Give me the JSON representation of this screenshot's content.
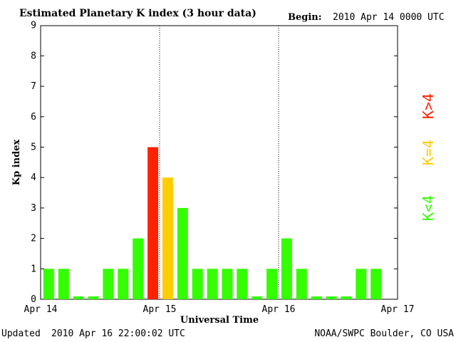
{
  "header": {
    "title": "Estimated Planetary K index (3 hour data)",
    "begin_label": "Begin:",
    "begin_value": "2010 Apr 14 0000 UTC"
  },
  "footer": {
    "updated_label": "Updated",
    "updated_value": "2010 Apr 16 22:00:02 UTC",
    "source": "NOAA/SWPC Boulder, CO USA"
  },
  "legend": {
    "green_label": "K<4",
    "yellow_label": "K=4",
    "red_label": "K>4"
  },
  "colors": {
    "green": "#33ff00",
    "yellow": "#ffcc00",
    "red": "#ff2200"
  },
  "chart_data": {
    "type": "bar",
    "title": "Estimated Planetary K index (3 hour data)",
    "xlabel": "Universal Time",
    "ylabel": "Kp index",
    "ylim": [
      0,
      9
    ],
    "yticks": [
      "0",
      "1",
      "2",
      "3",
      "4",
      "5",
      "6",
      "7",
      "8",
      "9"
    ],
    "xticks": [
      "Apr 14",
      "Apr 15",
      "Apr 16",
      "Apr 17"
    ],
    "interval_hours": 3,
    "values": [
      1,
      1,
      0,
      0,
      1,
      1,
      2,
      5,
      4,
      3,
      1,
      1,
      1,
      1,
      0,
      1,
      2,
      1,
      0,
      0,
      0,
      1,
      1
    ],
    "grid": "vertical dotted lines at day boundaries",
    "legend_position": "right"
  }
}
